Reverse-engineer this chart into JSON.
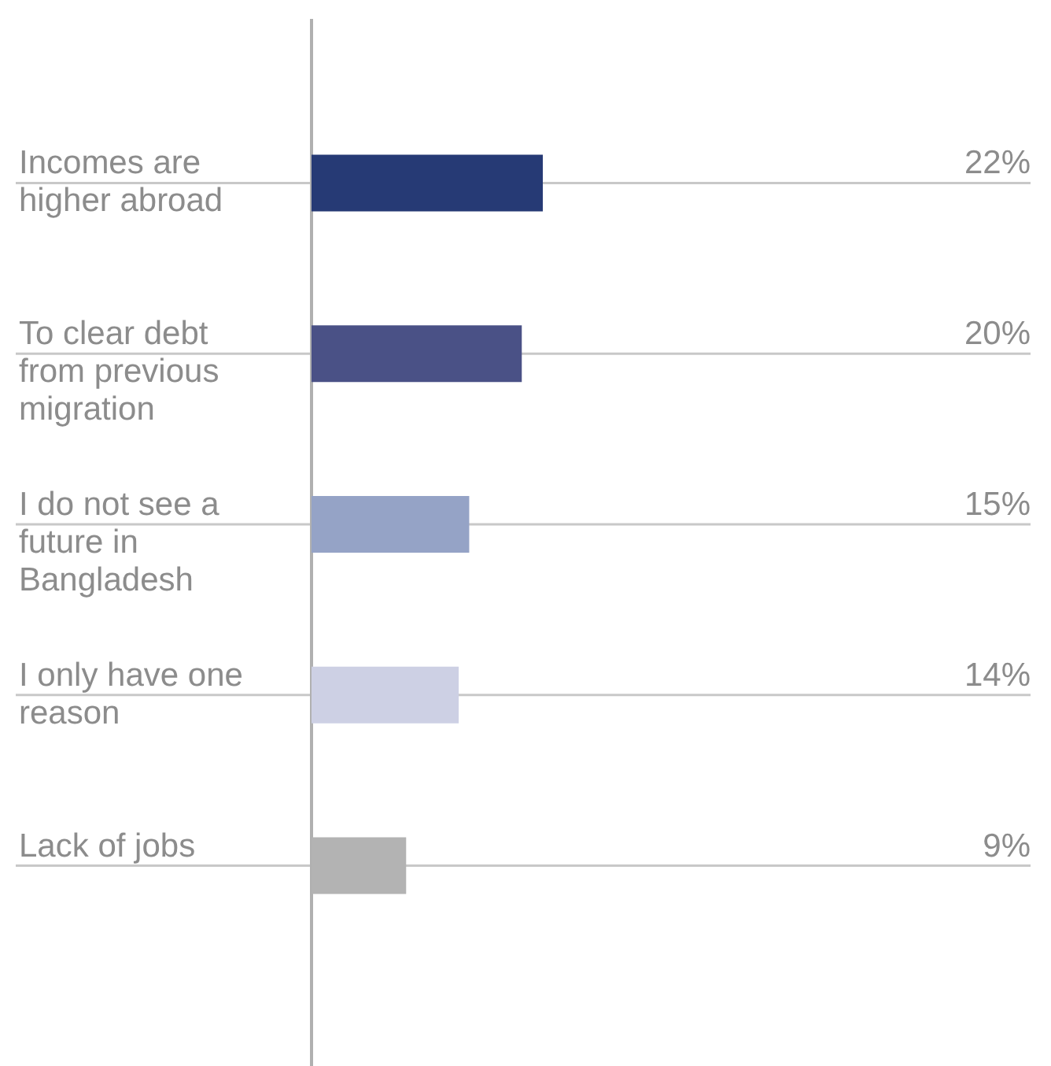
{
  "chart_data": {
    "type": "bar",
    "orientation": "horizontal",
    "categories": [
      "Incomes are higher abroad",
      "To clear debt from previous migration",
      "I do not see a future in Bangladesh",
      "I only have one reason",
      "Lack of jobs"
    ],
    "values": [
      22,
      20,
      15,
      14,
      9
    ],
    "colors": [
      "#263a75",
      "#4a5186",
      "#95a3c6",
      "#cdd0e4",
      "#b3b3b3"
    ],
    "value_labels": [
      "22%",
      "20%",
      "15%",
      "14%",
      "9%"
    ],
    "grid": "y"
  }
}
